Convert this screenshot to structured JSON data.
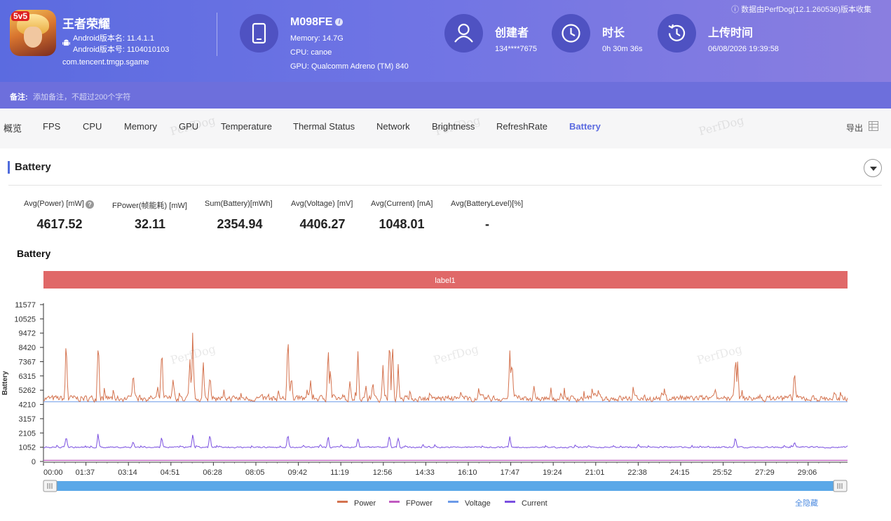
{
  "app": {
    "name": "王者荣耀",
    "icon_badge": "5v5",
    "version_name": "Android版本名: 11.4.1.1",
    "version_code": "Android版本号: 1104010103",
    "package": "com.tencent.tmgp.sgame"
  },
  "collect_note": "ⓘ 数据由PerfDog(12.1.260536)版本收集",
  "device": {
    "name": "M098FE",
    "memory": "Memory: 14.7G",
    "cpu": "CPU: canoe",
    "gpu": "GPU: Qualcomm Adreno (TM) 840"
  },
  "creator": {
    "label": "创建者",
    "value": "134****7675"
  },
  "duration": {
    "label": "时长",
    "value": "0h 30m 36s"
  },
  "upload": {
    "label": "上传时间",
    "value": "06/08/2026 19:39:58"
  },
  "remark": {
    "label": "备注:",
    "placeholder": "添加备注，不超过200个字符"
  },
  "tabs": [
    "概览",
    "FPS",
    "CPU",
    "Memory",
    "GPU",
    "Temperature",
    "Thermal Status",
    "Network",
    "Brightness",
    "RefreshRate",
    "Battery"
  ],
  "active_tab": "Battery",
  "export_label": "导出",
  "watermark": "PerfDog",
  "section_title": "Battery",
  "metrics": [
    {
      "label": "Avg(Power) [mW]",
      "value": "4617.52",
      "help": "?"
    },
    {
      "label": "FPower(帧能耗) [mW]",
      "value": "32.11"
    },
    {
      "label": "Sum(Battery)[mWh]",
      "value": "2354.94"
    },
    {
      "label": "Avg(Voltage) [mV]",
      "value": "4406.27"
    },
    {
      "label": "Avg(Current) [mA]",
      "value": "1048.01"
    },
    {
      "label": "Avg(BatteryLevel)[%]",
      "value": "-"
    }
  ],
  "chart_heading": "Battery",
  "hide_all_label": "全隐藏",
  "colors": {
    "power": "#d4734f",
    "fpower": "#c05ac0",
    "voltage": "#6b9ae8",
    "current": "#7a4fe0",
    "label_band": "#e06868",
    "slider": "#5aa8e8"
  },
  "chart_data": {
    "type": "line",
    "label_band": "label1",
    "ylabel": "Battery",
    "y_ticks": [
      0,
      1052,
      2105,
      3157,
      4210,
      5262,
      6315,
      7367,
      8420,
      9472,
      10525,
      11577
    ],
    "ylim": [
      0,
      11577
    ],
    "x_ticks": [
      "00:00",
      "01:37",
      "03:14",
      "04:51",
      "06:28",
      "08:05",
      "09:42",
      "11:19",
      "12:56",
      "14:33",
      "16:10",
      "17:47",
      "19:24",
      "21:01",
      "22:38",
      "24:15",
      "25:52",
      "27:29",
      "29:06"
    ],
    "x_range_seconds": [
      0,
      1836
    ],
    "legend": [
      "Power",
      "FPower",
      "Voltage",
      "Current"
    ],
    "series": [
      {
        "name": "Power",
        "baseline": 4650,
        "spikes": [
          [
            52,
            9700
          ],
          [
            125,
            10050
          ],
          [
            205,
            7400
          ],
          [
            270,
            9200
          ],
          [
            296,
            6700
          ],
          [
            342,
            7300
          ],
          [
            334,
            8200
          ],
          [
            341,
            10000
          ],
          [
            365,
            7800
          ],
          [
            380,
            6800
          ],
          [
            558,
            10000
          ],
          [
            566,
            7000
          ],
          [
            650,
            9300
          ],
          [
            655,
            7200
          ],
          [
            610,
            6200
          ],
          [
            700,
            6300
          ],
          [
            718,
            9000
          ],
          [
            736,
            5700
          ],
          [
            752,
            6000
          ],
          [
            775,
            7400
          ],
          [
            790,
            10400
          ],
          [
            797,
            9600
          ],
          [
            810,
            7600
          ],
          [
            1065,
            9300
          ],
          [
            1070,
            8400
          ],
          [
            1120,
            5600
          ],
          [
            1255,
            5200
          ],
          [
            1580,
            8900
          ],
          [
            1585,
            7600
          ],
          [
            1715,
            7200
          ],
          [
            1840,
            5300
          ]
        ]
      },
      {
        "name": "FPower",
        "baseline": 32
      },
      {
        "name": "Voltage",
        "baseline": 4406
      },
      {
        "name": "Current",
        "baseline": 1048,
        "spikes": [
          [
            52,
            2200
          ],
          [
            125,
            2200
          ],
          [
            205,
            1600
          ],
          [
            270,
            2000
          ],
          [
            341,
            2200
          ],
          [
            380,
            2100
          ],
          [
            558,
            2150
          ],
          [
            650,
            2000
          ],
          [
            718,
            1850
          ],
          [
            790,
            2200
          ],
          [
            810,
            2000
          ],
          [
            1065,
            1900
          ],
          [
            1580,
            1950
          ],
          [
            1715,
            1600
          ]
        ]
      }
    ]
  }
}
